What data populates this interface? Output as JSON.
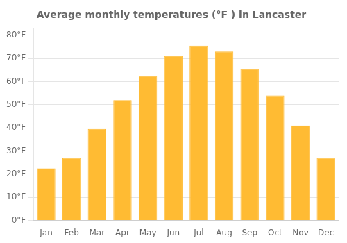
{
  "chart_data": {
    "type": "bar",
    "title": "Average monthly temperatures (°F ) in Lancaster",
    "categories": [
      "Jan",
      "Feb",
      "Mar",
      "Apr",
      "May",
      "Jun",
      "Jul",
      "Aug",
      "Sep",
      "Oct",
      "Nov",
      "Dec"
    ],
    "values": [
      22.5,
      27,
      39.5,
      52,
      62.5,
      71,
      75.5,
      73,
      65.5,
      54,
      41,
      27
    ],
    "color": "#FFBB33",
    "ylim": [
      0,
      83
    ],
    "yticks": [
      {
        "value": 0,
        "label": "0°F"
      },
      {
        "value": 10,
        "label": "10°F"
      },
      {
        "value": 20,
        "label": "20°F"
      },
      {
        "value": 30,
        "label": "30°F"
      },
      {
        "value": 40,
        "label": "40°F"
      },
      {
        "value": 50,
        "label": "50°F"
      },
      {
        "value": 60,
        "label": "60°F"
      },
      {
        "value": 70,
        "label": "70°F"
      },
      {
        "value": 80,
        "label": "80°F"
      }
    ],
    "grid": true
  }
}
